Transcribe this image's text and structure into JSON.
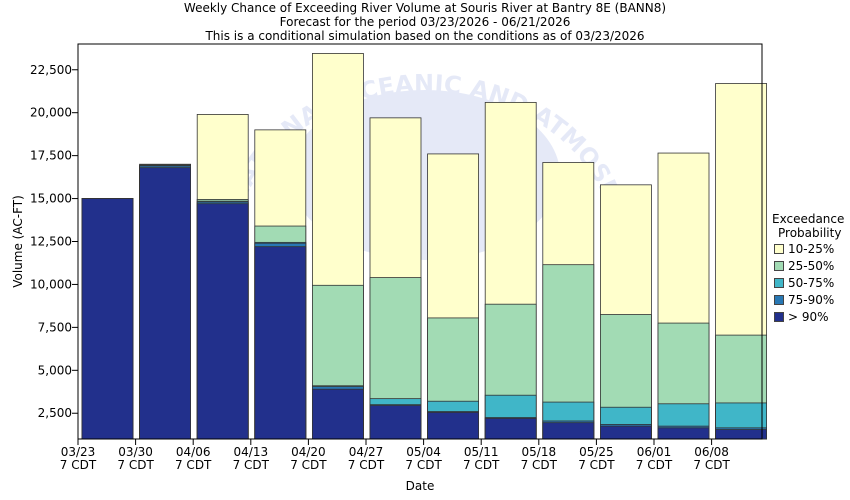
{
  "titles": {
    "line1": "Weekly Chance of Exceeding River Volume at Souris River at Bantry 8E (BANN8)",
    "line2": "Forecast for the period 03/23/2026 - 06/21/2026",
    "line3": "This is a conditional simulation based on the conditions as of 03/23/2026"
  },
  "watermark": "NATIONAL OCEANIC AND ATMOSPHERIC ADMINISTRATION",
  "chart_data": {
    "type": "bar",
    "stacked": true,
    "title": "Weekly Chance of Exceeding River Volume at Souris River at Bantry 8E (BANN8)",
    "xlabel": "Date",
    "ylabel": "Volume (AC-FT)",
    "ylim": [
      1000,
      24000
    ],
    "yticks": [
      2500,
      5000,
      7500,
      10000,
      12500,
      15000,
      17500,
      20000,
      22500
    ],
    "ytick_labels": [
      "2,500",
      "5,000",
      "7,500",
      "10,000",
      "12,500",
      "15,000",
      "17,500",
      "20,000",
      "22,500"
    ],
    "xtick_dates": [
      "03/23",
      "03/30",
      "04/06",
      "04/13",
      "04/20",
      "04/27",
      "05/04",
      "05/11",
      "05/18",
      "05/25",
      "06/01",
      "06/08"
    ],
    "xtick_sub": "7 CDT",
    "categories": [
      "03/23",
      "03/30",
      "04/06",
      "04/13",
      "04/20",
      "04/27",
      "05/04",
      "05/11",
      "05/18",
      "05/25",
      "06/01",
      "06/08"
    ],
    "bands": [
      {
        "name": "> 90%",
        "color": "#22308c",
        "values": [
          15000,
          16800,
          14700,
          12200,
          3900,
          2950,
          2550,
          2200,
          1950,
          1750,
          1650,
          1550
        ]
      },
      {
        "name": "75-90%",
        "color": "#2878b4",
        "values": [
          15000,
          16900,
          14800,
          12400,
          4050,
          3000,
          2600,
          2250,
          2050,
          1850,
          1750,
          1650
        ]
      },
      {
        "name": "50-75%",
        "color": "#40b6c8",
        "values": [
          15000,
          16950,
          14850,
          12450,
          4100,
          3350,
          3200,
          3550,
          3150,
          2850,
          3050,
          3100
        ]
      },
      {
        "name": "25-50%",
        "color": "#a2dbb4",
        "values": [
          15000,
          16950,
          14950,
          13400,
          9950,
          10400,
          8050,
          8850,
          11150,
          8250,
          7750,
          7050
        ]
      },
      {
        "name": "10-25%",
        "color": "#ffffcc",
        "values": [
          15000,
          17000,
          19900,
          19000,
          23450,
          19700,
          17600,
          20600,
          17100,
          15800,
          17650,
          21700
        ]
      }
    ]
  },
  "legend": {
    "title_line1": "Exceedance",
    "title_line2": "Probability",
    "items": [
      {
        "label": "10-25%",
        "color": "#ffffcc"
      },
      {
        "label": "25-50%",
        "color": "#a2dbb4"
      },
      {
        "label": "50-75%",
        "color": "#40b6c8"
      },
      {
        "label": "75-90%",
        "color": "#2878b4"
      },
      {
        "label": "> 90%",
        "color": "#22308c"
      }
    ]
  }
}
